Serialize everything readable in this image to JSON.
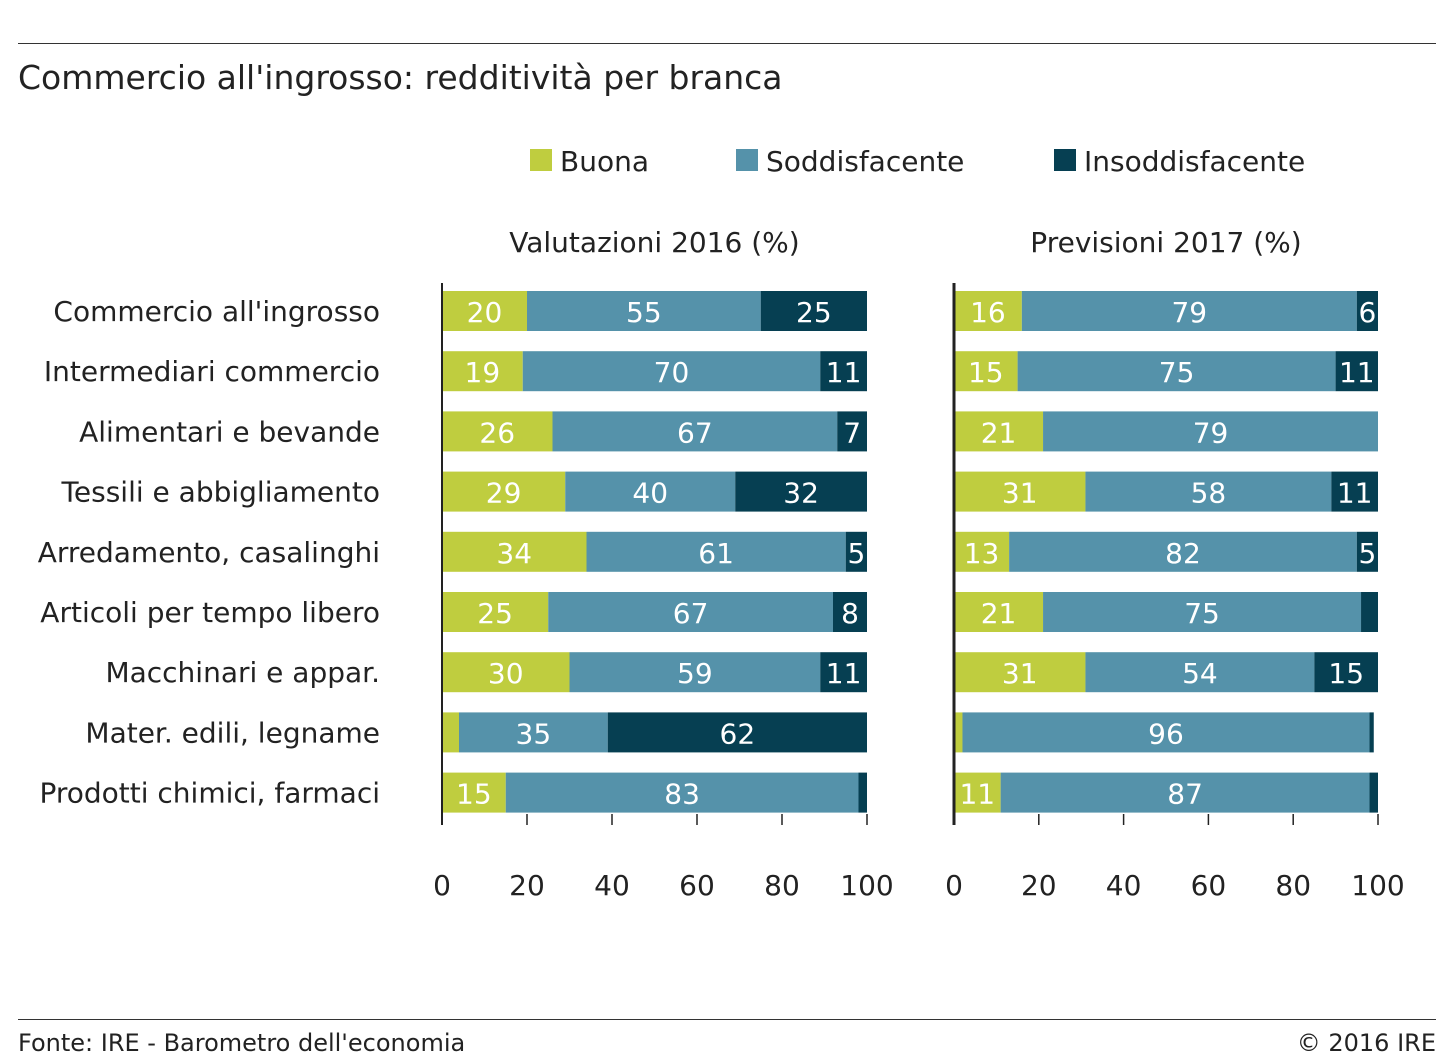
{
  "header": {
    "title": "Commercio all'ingrosso: redditività per branca"
  },
  "footer": {
    "source": "Fonte: IRE - Barometro dell'economia",
    "copyright": "© 2016 IRE"
  },
  "colors": {
    "buona": "#bfcd3f",
    "soddisfacente": "#5592aa",
    "insoddisfacente": "#063f52",
    "axis": "#222222",
    "bar_label": "#ffffff"
  },
  "chart_data": {
    "type": "bar",
    "orientation": "horizontal",
    "stacked": true,
    "legend": {
      "placement": "top",
      "entries": [
        "Buona",
        "Soddisfacente",
        "Insoddisfacente"
      ]
    },
    "categories": [
      "Commercio all'ingrosso",
      "Intermediari commercio",
      "Alimentari e bevande",
      "Tessili e abbigliamento",
      "Arredamento, casalinghi",
      "Articoli per tempo libero",
      "Macchinari e appar.",
      "Mater. edili, legname",
      "Prodotti chimici, farmaci"
    ],
    "grid": false,
    "panels": [
      {
        "title": "Valutazioni 2016 (%)",
        "xlim": [
          0,
          100
        ],
        "xticks": [
          "0",
          "20",
          "40",
          "60",
          "80",
          "100"
        ],
        "series": [
          {
            "name": "Buona",
            "values": [
              20,
              19,
              26,
              29,
              34,
              25,
              30,
              4,
              15
            ]
          },
          {
            "name": "Soddisfacente",
            "values": [
              55,
              70,
              67,
              40,
              61,
              67,
              59,
              35,
              83
            ]
          },
          {
            "name": "Insoddisfacente",
            "values": [
              25,
              11,
              7,
              32,
              5,
              8,
              11,
              62,
              2
            ]
          }
        ],
        "data_labels": {
          "Buona": [
            "20",
            "19",
            "26",
            "29",
            "34",
            "25",
            "30",
            "",
            "15"
          ],
          "Soddisfacente": [
            "55",
            "70",
            "67",
            "40",
            "61",
            "67",
            "59",
            "35",
            "83"
          ],
          "Insoddisfacente": [
            "25",
            "11",
            "7",
            "32",
            "5",
            "8",
            "11",
            "62",
            ""
          ]
        }
      },
      {
        "title": "Previsioni 2017 (%)",
        "xlim": [
          0,
          100
        ],
        "xticks": [
          "0",
          "20",
          "40",
          "60",
          "80",
          "100"
        ],
        "series": [
          {
            "name": "Buona",
            "values": [
              16,
              15,
              21,
              31,
              13,
              21,
              31,
              2,
              11
            ]
          },
          {
            "name": "Soddisfacente",
            "values": [
              79,
              75,
              79,
              58,
              82,
              75,
              54,
              96,
              87
            ]
          },
          {
            "name": "Insoddisfacente",
            "values": [
              6,
              11,
              0,
              11,
              5,
              4,
              15,
              1,
              2
            ]
          }
        ],
        "data_labels": {
          "Buona": [
            "16",
            "15",
            "21",
            "31",
            "13",
            "21",
            "31",
            "",
            "11"
          ],
          "Soddisfacente": [
            "79",
            "75",
            "79",
            "58",
            "82",
            "75",
            "54",
            "96",
            "87"
          ],
          "Insoddisfacente": [
            "6",
            "11",
            "",
            "11",
            "5",
            "",
            "15",
            "",
            ""
          ]
        }
      }
    ]
  }
}
